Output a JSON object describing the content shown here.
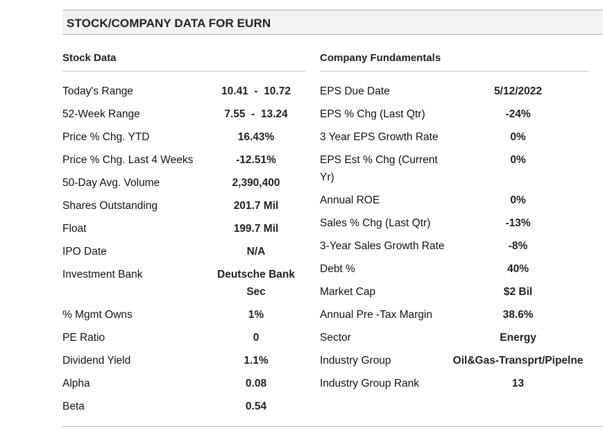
{
  "header": {
    "title": "STOCK/COMPANY DATA FOR EURN"
  },
  "stock_data": {
    "title": "Stock Data",
    "rows": [
      {
        "label": "Today's Range",
        "value": "10.41  -  10.72"
      },
      {
        "label": "52-Week Range",
        "value": "7.55  -  13.24"
      },
      {
        "label": "Price % Chg. YTD",
        "value": "16.43%"
      },
      {
        "label": "Price % Chg. Last 4 Weeks",
        "value": "-12.51%"
      },
      {
        "label": "50-Day Avg. Volume",
        "value": "2,390,400"
      },
      {
        "label": "Shares Outstanding",
        "value": "201.7 Mil"
      },
      {
        "label": "Float",
        "value": "199.7 Mil"
      },
      {
        "label": "IPO Date",
        "value": "N/A"
      },
      {
        "label": "Investment Bank",
        "value": "Deutsche Bank Sec"
      },
      {
        "label": "% Mgmt Owns",
        "value": "1%"
      },
      {
        "label": "PE Ratio",
        "value": "0"
      },
      {
        "label": "Dividend Yield",
        "value": "1.1%"
      },
      {
        "label": "Alpha",
        "value": "0.08"
      },
      {
        "label": "Beta",
        "value": "0.54"
      }
    ]
  },
  "company_fundamentals": {
    "title": "Company Fundamentals",
    "rows": [
      {
        "label": "EPS Due Date",
        "value": "5/12/2022"
      },
      {
        "label": "EPS % Chg (Last Qtr)",
        "value": "-24%"
      },
      {
        "label": "3 Year EPS Growth Rate",
        "value": "0%"
      },
      {
        "label": "EPS Est % Chg (Current Yr)",
        "value": "0%"
      },
      {
        "label": "Annual ROE",
        "value": "0%"
      },
      {
        "label": "Sales % Chg (Last Qtr)",
        "value": "-13%"
      },
      {
        "label": "3-Year Sales Growth Rate",
        "value": "-8%"
      },
      {
        "label": "Debt %",
        "value": "40%"
      },
      {
        "label": "Market Cap",
        "value": "$2 Bil"
      },
      {
        "label": "Annual Pre -Tax Margin",
        "value": "38.6%"
      },
      {
        "label": "Sector",
        "value": "Energy"
      },
      {
        "label": "Industry Group",
        "value": "Oil&Gas-Transprt/Pipelne"
      },
      {
        "label": "Industry Group Rank",
        "value": "13"
      }
    ]
  }
}
